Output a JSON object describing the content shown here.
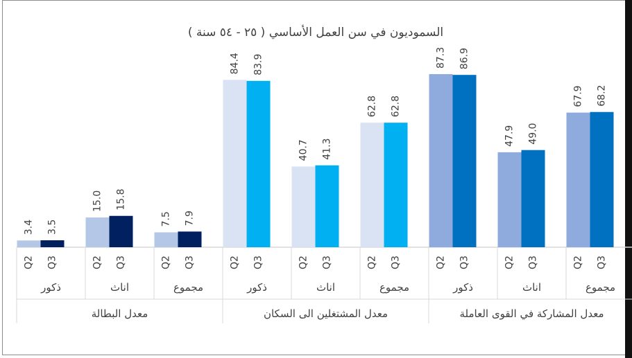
{
  "chart_data": {
    "type": "bar",
    "title": "السموديون في سن العمل الأساسي ( ٢٥ - ٥٤ سنة )",
    "ylim": [
      0,
      95
    ],
    "grid": false,
    "legend": "none",
    "series_names": [
      "Q2",
      "Q3"
    ],
    "groups": [
      {
        "label": "معدل البطالة",
        "subgroups": [
          {
            "label": "ذكور",
            "Q2": 3.4,
            "Q3": 3.5,
            "q2_label": "3.4",
            "q3_label": "3.5"
          },
          {
            "label": "اناث",
            "Q2": 15.0,
            "Q3": 15.8,
            "q2_label": "15.0",
            "q3_label": "15.8"
          },
          {
            "label": "مجموع",
            "Q2": 7.5,
            "Q3": 7.9,
            "q2_label": "7.5",
            "q3_label": "7.9"
          }
        ],
        "colors": {
          "Q2": "#b4c7e7",
          "Q3": "#002060"
        }
      },
      {
        "label": "معدل المشتغلين الى السكان",
        "subgroups": [
          {
            "label": "ذكور",
            "Q2": 84.4,
            "Q3": 83.9,
            "q2_label": "84.4",
            "q3_label": "83.9"
          },
          {
            "label": "اناث",
            "Q2": 40.7,
            "Q3": 41.3,
            "q2_label": "40.7",
            "q3_label": "41.3"
          },
          {
            "label": "مجموع",
            "Q2": 62.8,
            "Q3": 62.8,
            "q2_label": "62.8",
            "q3_label": "62.8"
          }
        ],
        "colors": {
          "Q2": "#dae3f3",
          "Q3": "#00b0f0"
        }
      },
      {
        "label": "معدل المشاركة في القوى العاملة",
        "subgroups": [
          {
            "label": "ذكور",
            "Q2": 87.3,
            "Q3": 86.9,
            "q2_label": "87.3",
            "q3_label": "86.9"
          },
          {
            "label": "اناث",
            "Q2": 47.9,
            "Q3": 49.0,
            "q2_label": "47.9",
            "q3_label": "49.0"
          },
          {
            "label": "مجموع",
            "Q2": 67.9,
            "Q3": 68.2,
            "q2_label": "67.9",
            "q3_label": "68.2"
          }
        ],
        "colors": {
          "Q2": "#8faadc",
          "Q3": "#0070c0"
        }
      }
    ]
  }
}
